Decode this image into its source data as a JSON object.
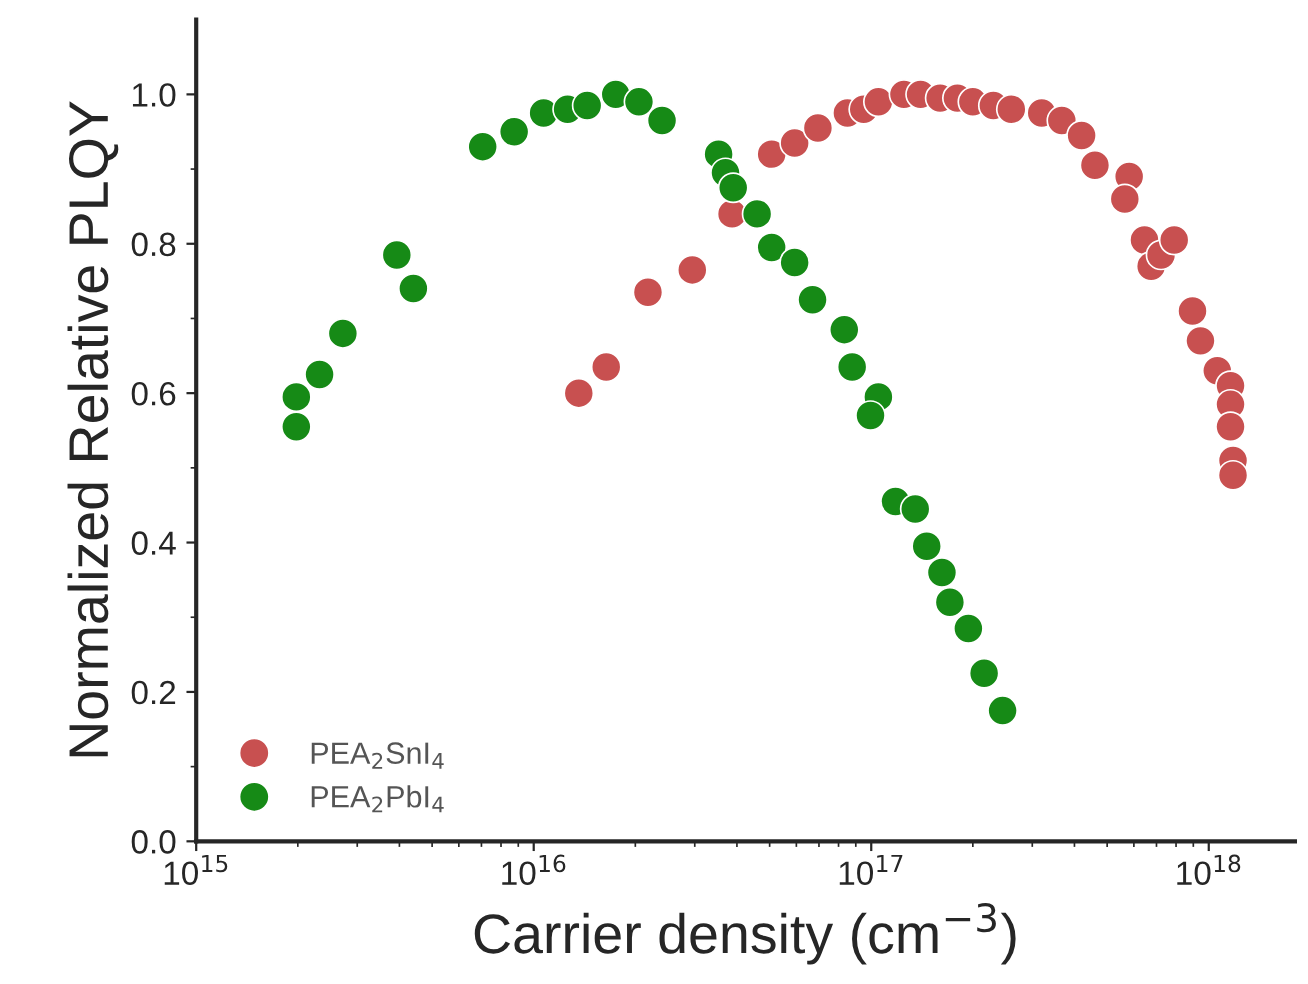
{
  "chart_data": {
    "type": "scatter",
    "xlabel": "Carrier density (cm$^{−3}$)",
    "ylabel": "Normalized Relative PLQY",
    "log": "x",
    "xlim": [
      1000000000000000.0,
      1.8e+18
    ],
    "ylim": [
      0,
      1.1
    ],
    "xticks": [
      {
        "value": 1000000000000000.0,
        "label": "10$^{15}$"
      },
      {
        "value": 1e+16,
        "label": "10$^{16}$"
      },
      {
        "value": 1e+17,
        "label": "10$^{17}$"
      },
      {
        "value": 1e+18,
        "label": "10$^{18}$"
      }
    ],
    "yticks": [
      {
        "value": 0,
        "label": "0.0"
      },
      {
        "value": 0.2,
        "label": "0.2"
      },
      {
        "value": 0.4,
        "label": "0.4"
      },
      {
        "value": 0.6,
        "label": "0.6"
      },
      {
        "value": 0.8,
        "label": "0.8"
      },
      {
        "value": 1.0,
        "label": "1.0"
      }
    ],
    "legend": "bottom left",
    "grid": false,
    "marker": "circle",
    "series": [
      {
        "name": "PEA$_{2}$SnI$_{4}$",
        "color": "#c85050",
        "x": [
          1.36e+16,
          1.64e+16,
          2.18e+16,
          2.95e+16,
          3.87e+16,
          5.07e+16,
          5.93e+16,
          6.95e+16,
          8.5e+16,
          9.5e+16,
          1.05e+17,
          1.25e+17,
          1.4e+17,
          1.6e+17,
          1.8e+17,
          2e+17,
          2.3e+17,
          2.6e+17,
          3.2e+17,
          3.67e+17,
          4.2e+17,
          4.6e+17,
          5.81e+17,
          5.64e+17,
          6.45e+17,
          6.75e+17,
          7.22e+17,
          7.9e+17,
          8.95e+17,
          9.45e+17,
          1.06e+18,
          1.16e+18,
          1.16e+18,
          1.16e+18,
          1.18e+18,
          1.18e+18
        ],
        "values": [
          0.6,
          0.635,
          0.735,
          0.765,
          0.84,
          0.92,
          0.935,
          0.955,
          0.975,
          0.98,
          0.99,
          1.0,
          1.0,
          0.995,
          0.995,
          0.99,
          0.985,
          0.98,
          0.975,
          0.965,
          0.945,
          0.905,
          0.89,
          0.86,
          0.805,
          0.77,
          0.785,
          0.805,
          0.71,
          0.67,
          0.63,
          0.61,
          0.585,
          0.555,
          0.51,
          0.49
        ]
      },
      {
        "name": "PEA$_{2}$PbI$_{4}$",
        "color": "#168a16",
        "x": [
          1980000000000000.0,
          1980000000000000.0,
          2320000000000000.0,
          2720000000000000.0,
          3930000000000000.0,
          4400000000000000.0,
          7060000000000000.0,
          8750000000000000.0,
          1.07e+16,
          1.26e+16,
          1.44e+16,
          1.75e+16,
          2.05e+16,
          2.4e+16,
          3.53e+16,
          3.7e+16,
          3.9e+16,
          4.59e+16,
          5.07e+16,
          5.93e+16,
          6.7e+16,
          8.32e+16,
          8.78e+16,
          1.05e+17,
          9.95e+16,
          1.18e+17,
          1.35e+17,
          1.46e+17,
          1.62e+17,
          1.71e+17,
          1.94e+17,
          2.16e+17,
          2.45e+17
        ],
        "values": [
          0.555,
          0.595,
          0.625,
          0.68,
          0.785,
          0.74,
          0.93,
          0.95,
          0.975,
          0.98,
          0.985,
          1.0,
          0.99,
          0.965,
          0.92,
          0.895,
          0.875,
          0.84,
          0.795,
          0.775,
          0.725,
          0.685,
          0.635,
          0.595,
          0.57,
          0.455,
          0.445,
          0.395,
          0.36,
          0.32,
          0.285,
          0.225,
          0.175
        ]
      }
    ]
  }
}
